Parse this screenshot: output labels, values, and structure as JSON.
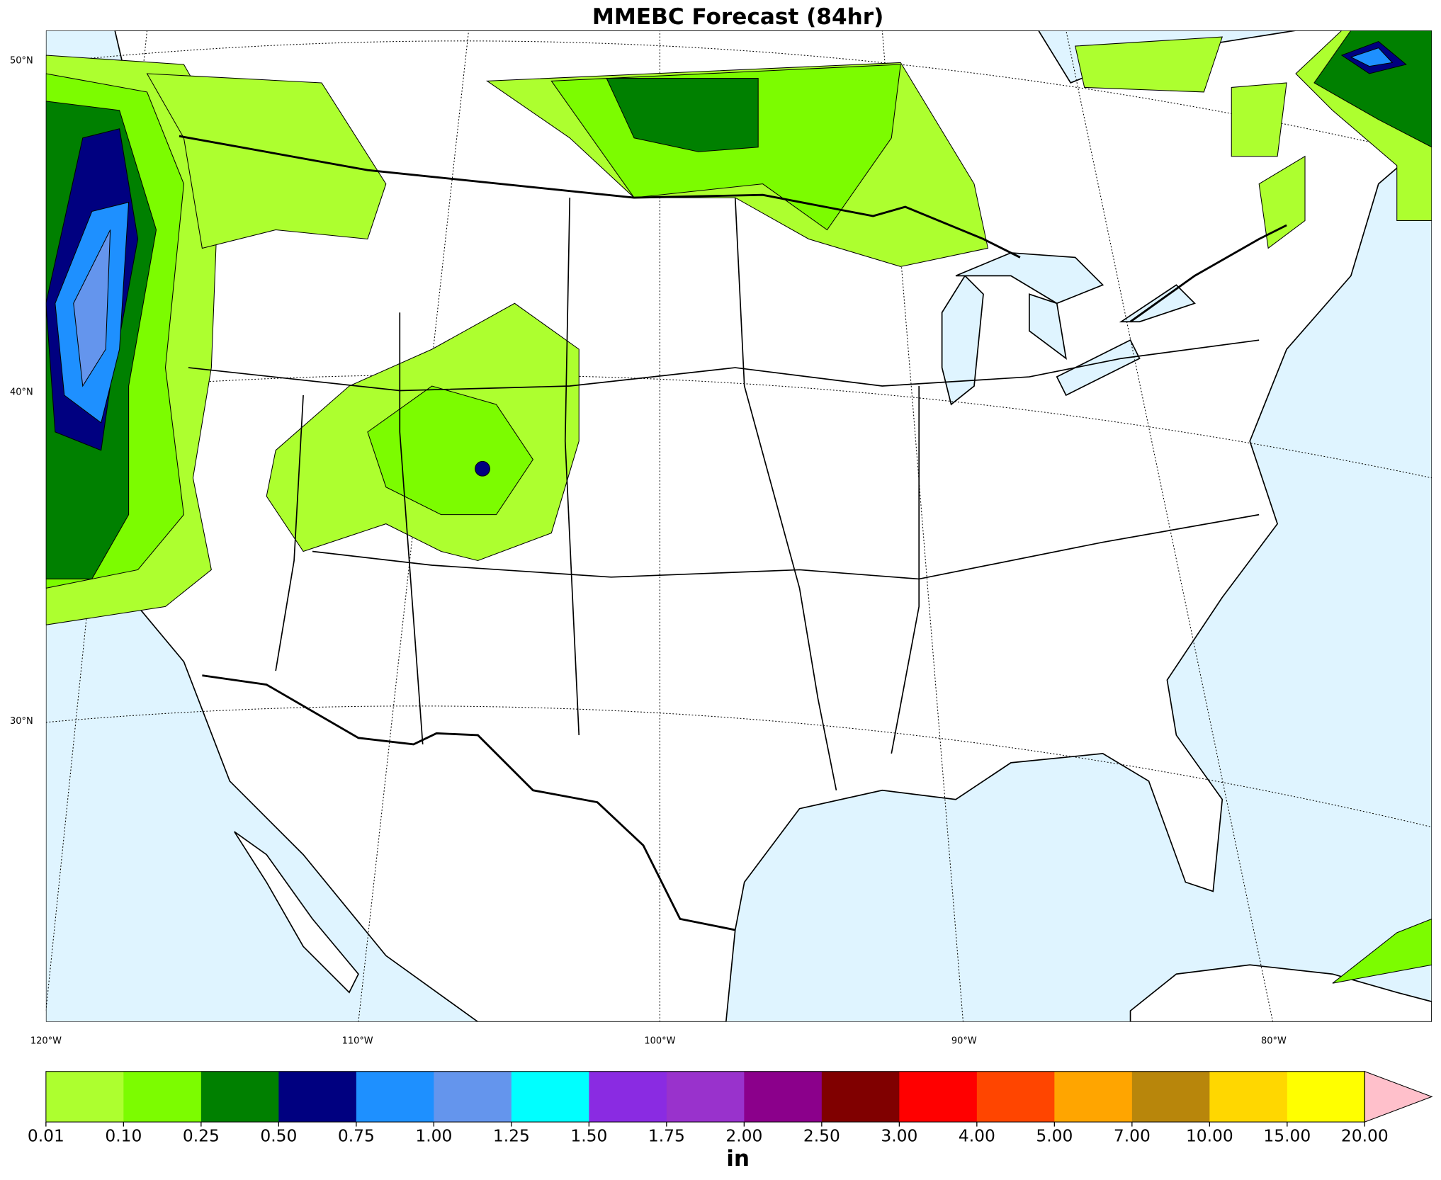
{
  "title": "MMEBC Forecast (84hr)",
  "map": {
    "lat_labels": [
      "50°N",
      "40°N",
      "30°N"
    ],
    "lon_labels": [
      "120°W",
      "110°W",
      "100°W",
      "90°W",
      "80°W"
    ]
  },
  "colorbar": {
    "ticks": [
      {
        "value": 0.01,
        "label": "0.01"
      },
      {
        "value": 0.1,
        "label": "0.10"
      },
      {
        "value": 0.25,
        "label": "0.25"
      },
      {
        "value": 0.5,
        "label": "0.50"
      },
      {
        "value": 0.75,
        "label": "0.75"
      },
      {
        "value": 1,
        "label": "1.00"
      },
      {
        "value": 1.25,
        "label": "1.25"
      },
      {
        "value": 1.5,
        "label": "1.50"
      },
      {
        "value": 1.75,
        "label": "1.75"
      },
      {
        "value": 2,
        "label": "2.00"
      },
      {
        "value": 2.5,
        "label": "2.50"
      },
      {
        "value": 3,
        "label": "3.00"
      },
      {
        "value": 4,
        "label": "4.00"
      },
      {
        "value": 5,
        "label": "5.00"
      },
      {
        "value": 7,
        "label": "7.00"
      },
      {
        "value": 10,
        "label": "10.00"
      },
      {
        "value": 15,
        "label": "15.00"
      },
      {
        "value": 20,
        "label": "20.00"
      }
    ],
    "colors": [
      "#adff2f",
      "#7cfc00",
      "#008000",
      "#000080",
      "#1e90ff",
      "#6495ed",
      "#00ffff",
      "#8a2be2",
      "#9932cc",
      "#8b008b",
      "#800000",
      "#ff0000",
      "#ff4500",
      "#ffa500",
      "#b8860b",
      "#ffd700",
      "#ffff00"
    ],
    "extend_color": "#ffc0cb",
    "unit": "in"
  }
}
